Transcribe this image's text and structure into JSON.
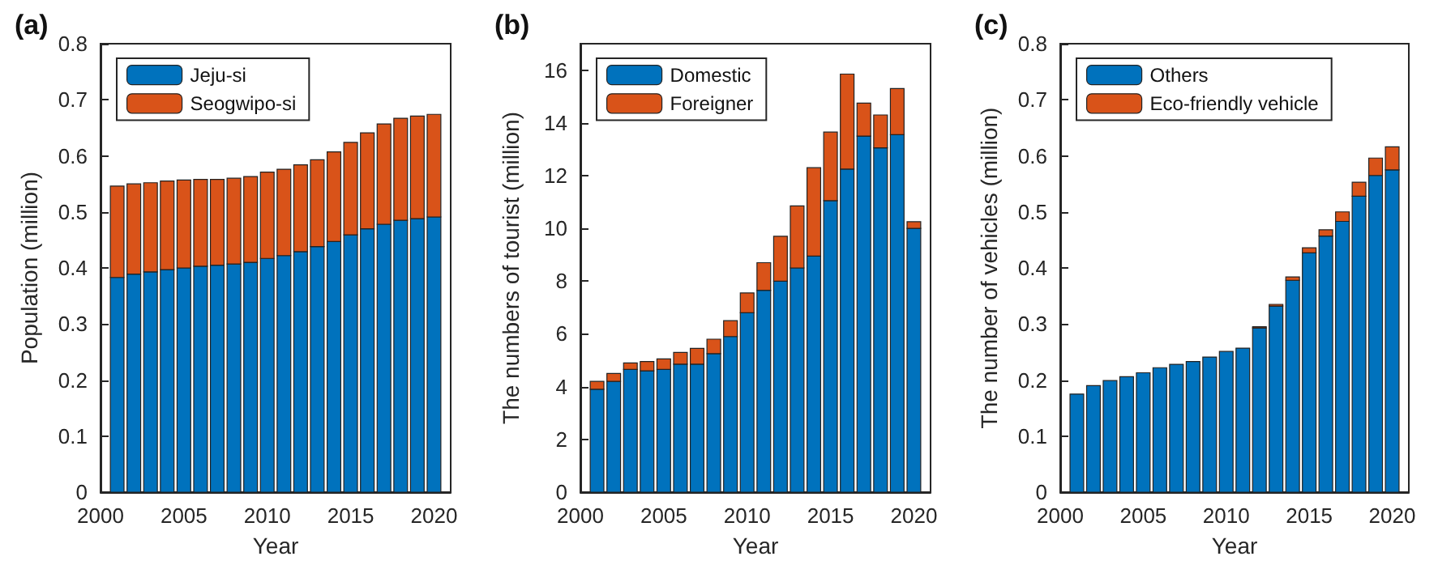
{
  "chart_data": [
    {
      "type": "bar",
      "title": "(a)",
      "xlabel": "Year",
      "ylabel": "Population (million)",
      "x": [
        2001,
        2002,
        2003,
        2004,
        2005,
        2006,
        2007,
        2008,
        2009,
        2010,
        2011,
        2012,
        2013,
        2014,
        2015,
        2016,
        2017,
        2018,
        2019,
        2020
      ],
      "stacked": true,
      "xlim": [
        2000,
        2021
      ],
      "xticks": [
        2000,
        2005,
        2010,
        2015,
        2020
      ],
      "ylim": [
        0,
        0.8
      ],
      "yticks": [
        0,
        0.1,
        0.2,
        0.3,
        0.4,
        0.5,
        0.6,
        0.7,
        0.8
      ],
      "legend": "top left",
      "grid": false,
      "series": [
        {
          "name": "Jeju-si",
          "color": "#0072bd",
          "values": [
            0.383,
            0.389,
            0.393,
            0.397,
            0.4,
            0.403,
            0.405,
            0.407,
            0.41,
            0.417,
            0.422,
            0.429,
            0.438,
            0.447,
            0.459,
            0.47,
            0.478,
            0.485,
            0.488,
            0.491
          ]
        },
        {
          "name": "Seogwipo-si",
          "color": "#d95319",
          "values": [
            0.163,
            0.161,
            0.159,
            0.158,
            0.157,
            0.155,
            0.153,
            0.153,
            0.153,
            0.154,
            0.154,
            0.155,
            0.155,
            0.16,
            0.165,
            0.171,
            0.179,
            0.182,
            0.183,
            0.183
          ]
        }
      ]
    },
    {
      "type": "bar",
      "title": "(b)",
      "xlabel": "Year",
      "ylabel": "The numbers of tourist (million)",
      "x": [
        2001,
        2002,
        2003,
        2004,
        2005,
        2006,
        2007,
        2008,
        2009,
        2010,
        2011,
        2012,
        2013,
        2014,
        2015,
        2016,
        2017,
        2018,
        2019,
        2020
      ],
      "stacked": true,
      "xlim": [
        2000,
        2021
      ],
      "xticks": [
        2000,
        2005,
        2010,
        2015,
        2020
      ],
      "ylim": [
        0,
        17
      ],
      "yticks": [
        0,
        2,
        4,
        6,
        8,
        10,
        12,
        14,
        16
      ],
      "legend": "top left",
      "grid": false,
      "series": [
        {
          "name": "Domestic",
          "color": "#0072bd",
          "values": [
            3.9,
            4.2,
            4.65,
            4.6,
            4.65,
            4.85,
            4.85,
            5.25,
            5.9,
            6.8,
            7.65,
            8.0,
            8.5,
            8.95,
            11.05,
            12.25,
            13.5,
            13.05,
            13.55,
            10.0
          ]
        },
        {
          "name": "Foreigner",
          "color": "#d95319",
          "values": [
            0.3,
            0.3,
            0.25,
            0.35,
            0.4,
            0.45,
            0.6,
            0.55,
            0.6,
            0.75,
            1.05,
            1.7,
            2.35,
            3.35,
            2.6,
            3.6,
            1.25,
            1.25,
            1.75,
            0.25
          ]
        }
      ]
    },
    {
      "type": "bar",
      "title": "(c)",
      "xlabel": "Year",
      "ylabel": "The number of vehicles (million)",
      "x": [
        2001,
        2002,
        2003,
        2004,
        2005,
        2006,
        2007,
        2008,
        2009,
        2010,
        2011,
        2012,
        2013,
        2014,
        2015,
        2016,
        2017,
        2018,
        2019,
        2020
      ],
      "stacked": true,
      "xlim": [
        2000,
        2021
      ],
      "xticks": [
        2000,
        2005,
        2010,
        2015,
        2020
      ],
      "ylim": [
        0,
        0.8
      ],
      "yticks": [
        0,
        0.1,
        0.2,
        0.3,
        0.4,
        0.5,
        0.6,
        0.7,
        0.8
      ],
      "legend": "top left",
      "grid": false,
      "series": [
        {
          "name": "Others",
          "color": "#0072bd",
          "values": [
            0.175,
            0.19,
            0.199,
            0.206,
            0.213,
            0.222,
            0.228,
            0.233,
            0.241,
            0.251,
            0.257,
            0.293,
            0.332,
            0.378,
            0.427,
            0.457,
            0.483,
            0.528,
            0.565,
            0.575
          ]
        },
        {
          "name": "Eco-friendly vehicle",
          "color": "#d95319",
          "values": [
            0,
            0,
            0,
            0,
            0,
            0,
            0,
            0,
            0,
            0,
            0,
            0.002,
            0.003,
            0.006,
            0.009,
            0.011,
            0.017,
            0.025,
            0.031,
            0.041
          ]
        }
      ]
    }
  ]
}
